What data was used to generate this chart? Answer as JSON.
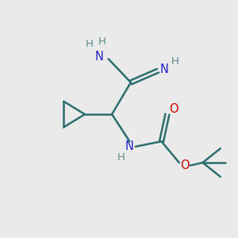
{
  "bg_color": "#eaeaea",
  "bond_color": "#2d6e6e",
  "n_color": "#2222cc",
  "o_color": "#cc0000",
  "h_color": "#5d8c8c",
  "line_width": 1.8,
  "figsize": [
    3.0,
    3.0
  ],
  "dpi": 100,
  "xlim": [
    0,
    10
  ],
  "ylim": [
    0,
    10
  ]
}
